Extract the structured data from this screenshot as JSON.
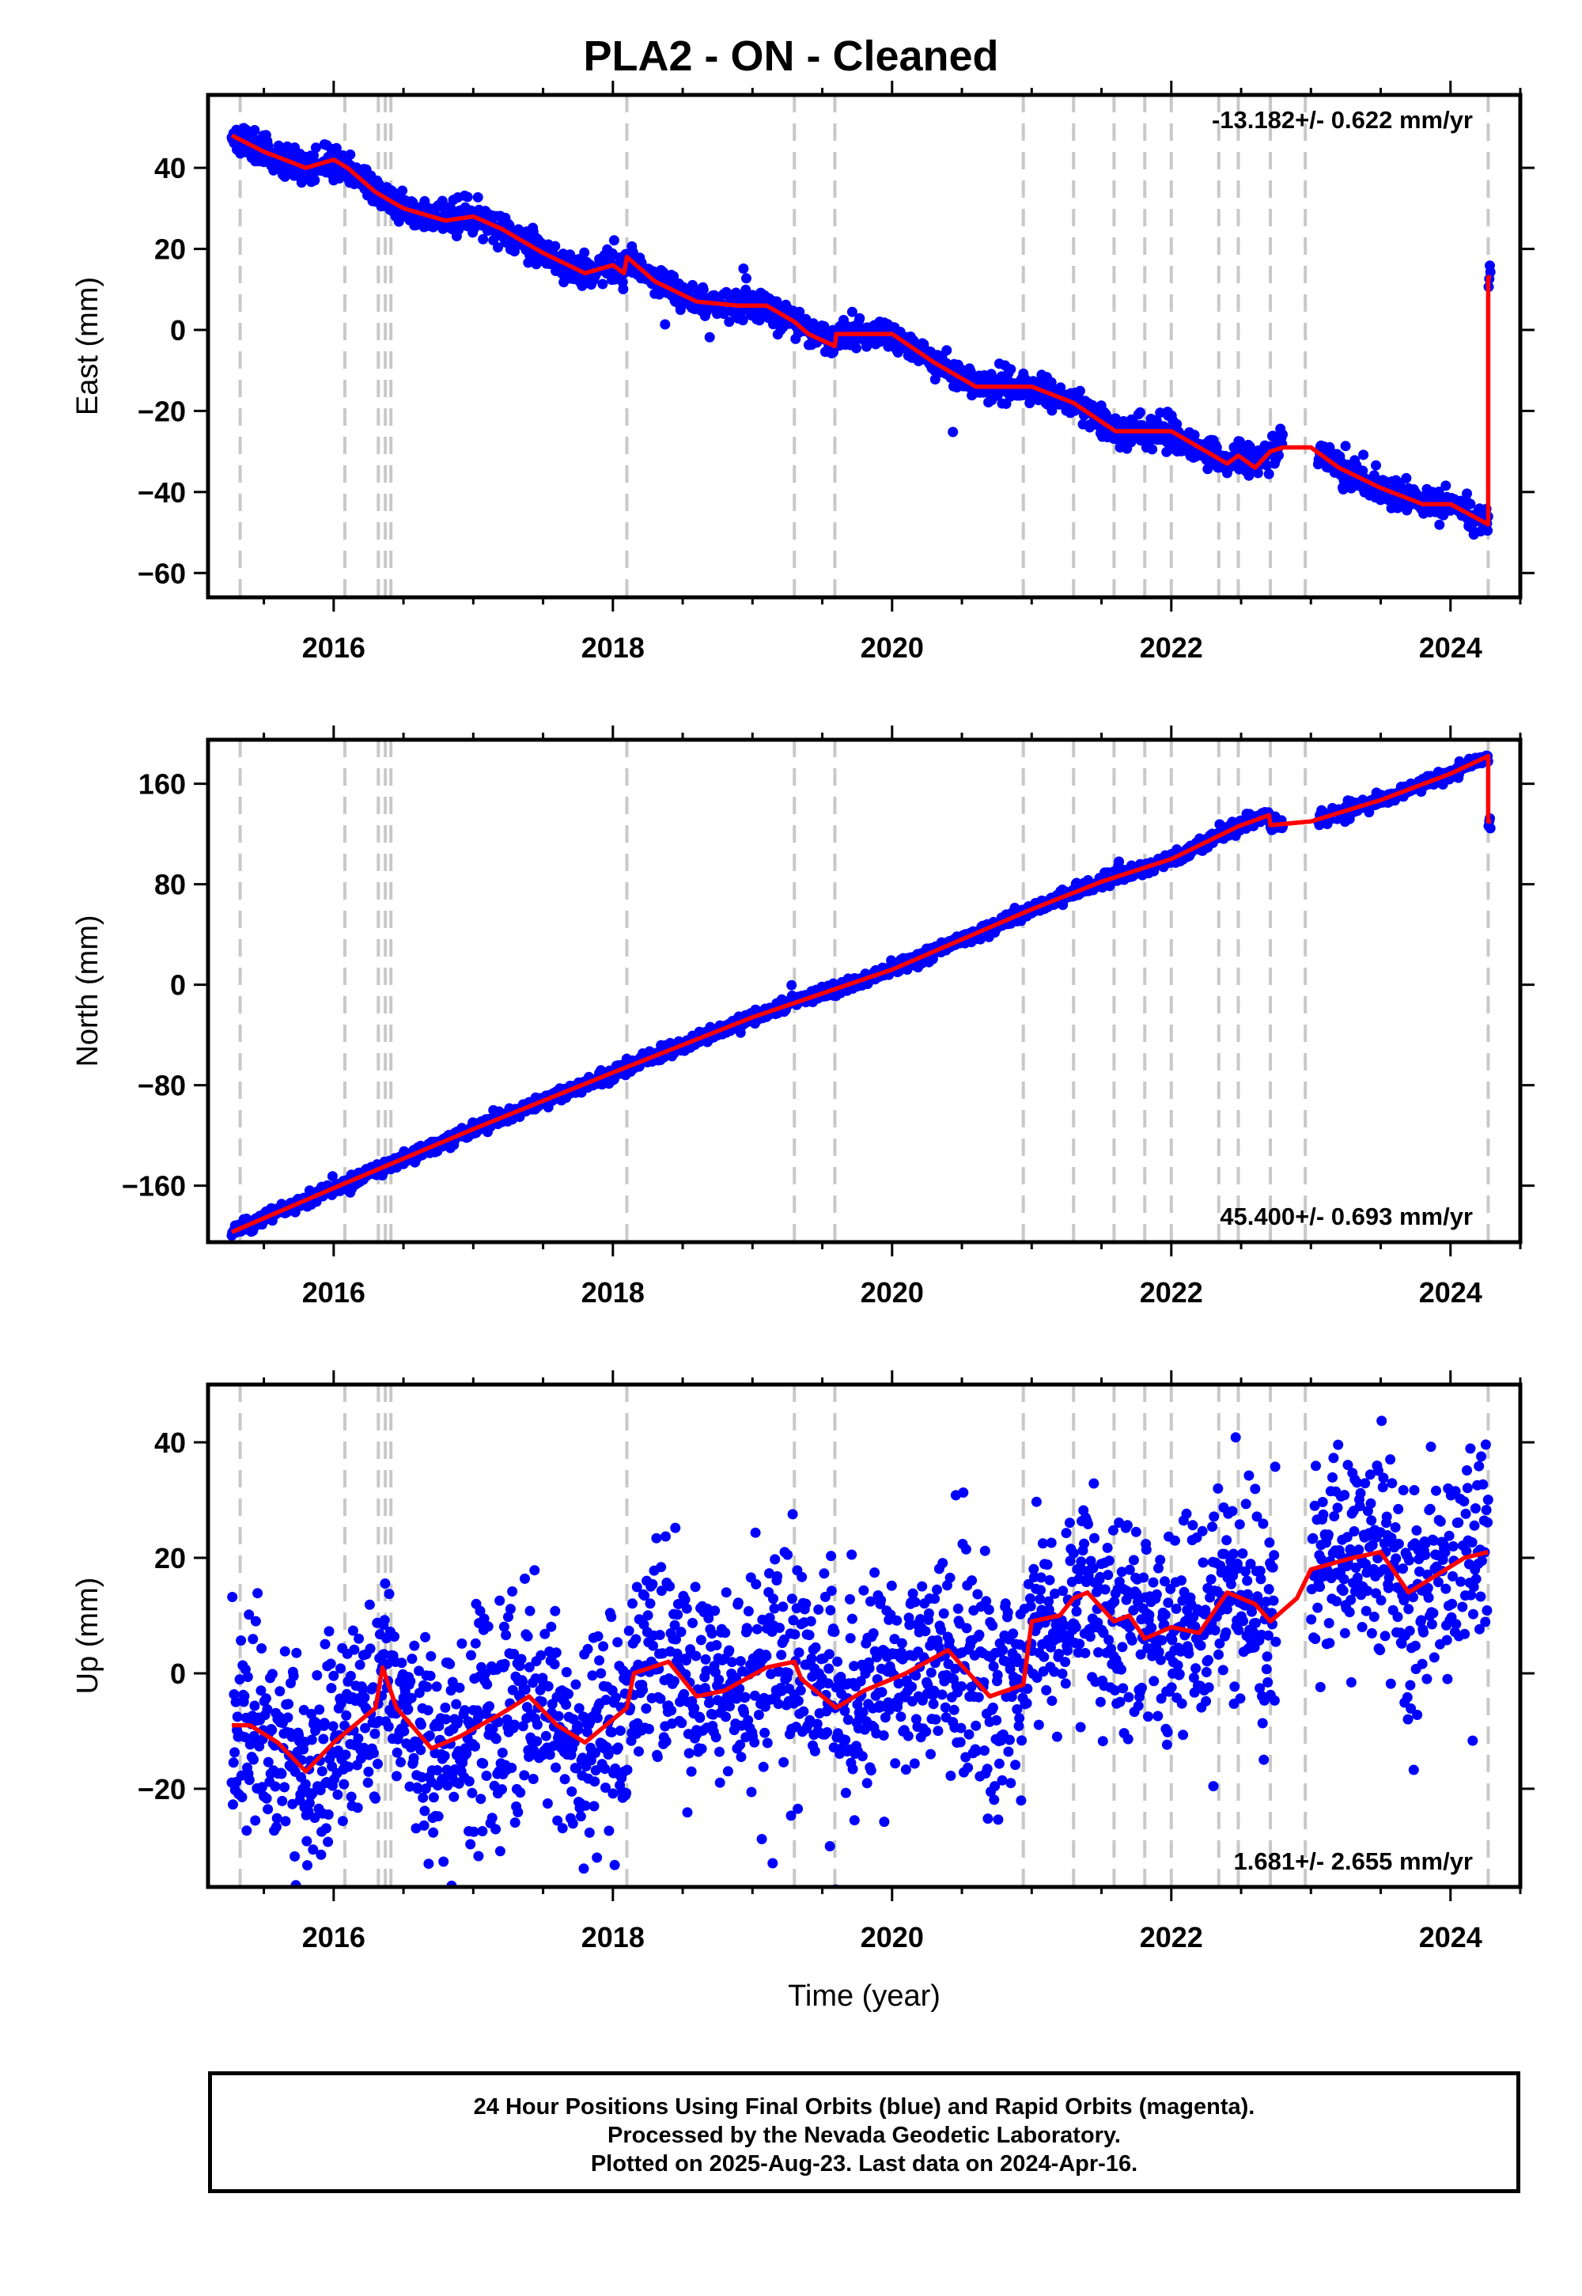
{
  "title": "PLA2  - ON - Cleaned",
  "footer": {
    "line1": "24 Hour Positions Using Final Orbits (blue) and Rapid Orbits (magenta).",
    "line2": "Processed by the Nevada Geodetic Laboratory.",
    "line3": "Plotted on 2025-Aug-23. Last data on 2024-Apr-16."
  },
  "colors": {
    "points": "#0000ff",
    "model": "#ff0000",
    "steps": "#c8c8c8"
  },
  "chart_data": [
    {
      "type": "scatter",
      "panel": "east",
      "ylabel": "East (mm)",
      "xlabel": "",
      "rate_label": "-13.182+/- 0.622 mm/yr",
      "rate_position": "top-right",
      "xlim": [
        2015.1,
        2024.5
      ],
      "ylim": [
        -66,
        58
      ],
      "xticks": [
        2016,
        2018,
        2020,
        2022,
        2024
      ],
      "yticks": [
        -60,
        -40,
        -20,
        0,
        20,
        40
      ],
      "ytick_labels": [
        "−60",
        "−40",
        "−20",
        "0",
        "20",
        "40"
      ],
      "step_epochs": [
        2015.33,
        2016.08,
        2016.32,
        2016.37,
        2016.41,
        2018.1,
        2019.3,
        2019.59,
        2020.94,
        2021.3,
        2021.59,
        2021.81,
        2022.0,
        2022.34,
        2022.48,
        2022.71,
        2022.96,
        2024.27
      ],
      "model_x": [
        2015.27,
        2015.5,
        2015.8,
        2016.0,
        2016.1,
        2016.3,
        2016.5,
        2016.8,
        2017.0,
        2017.2,
        2017.5,
        2017.8,
        2018.0,
        2018.08,
        2018.1,
        2018.3,
        2018.6,
        2018.9,
        2019.1,
        2019.3,
        2019.4,
        2019.59,
        2019.6,
        2019.8,
        2020.0,
        2020.3,
        2020.6,
        2020.9,
        2021.0,
        2021.3,
        2021.6,
        2021.8,
        2022.0,
        2022.2,
        2022.4,
        2022.48,
        2022.6,
        2022.71,
        2022.8,
        2023.0,
        2023.2,
        2023.5,
        2023.8,
        2024.0,
        2024.27,
        2024.27,
        2024.29
      ],
      "model_y": [
        48,
        44,
        40,
        42,
        40,
        34,
        30,
        27,
        28,
        25,
        19,
        14,
        16,
        14,
        18,
        12,
        7,
        6,
        6,
        2,
        -1,
        -4,
        -1,
        -1,
        -1,
        -8,
        -14,
        -14,
        -14,
        -18,
        -25,
        -25,
        -25,
        -29,
        -33,
        -31,
        -34,
        -30,
        -29,
        -29,
        -34,
        -39,
        -43,
        -43,
        -48,
        13,
        13
      ],
      "point_seed": 11,
      "point_scatter": 1.8
    },
    {
      "type": "scatter",
      "panel": "north",
      "ylabel": "North (mm)",
      "xlabel": "",
      "rate_label": "45.400+/- 0.693 mm/yr",
      "rate_position": "bottom-right",
      "xlim": [
        2015.1,
        2024.5
      ],
      "ylim": [
        -205,
        195
      ],
      "xticks": [
        2016,
        2018,
        2020,
        2022,
        2024
      ],
      "yticks": [
        -160,
        -80,
        0,
        80,
        160
      ],
      "ytick_labels": [
        "−160",
        "−80",
        "0",
        "80",
        "160"
      ],
      "step_epochs": [
        2015.33,
        2016.08,
        2016.32,
        2016.37,
        2016.41,
        2018.1,
        2019.3,
        2019.59,
        2020.94,
        2021.3,
        2021.59,
        2021.81,
        2022.0,
        2022.34,
        2022.48,
        2022.71,
        2022.96,
        2024.27
      ],
      "model_x": [
        2015.27,
        2016.0,
        2017.0,
        2018.0,
        2019.0,
        2020.0,
        2021.0,
        2021.5,
        2022.0,
        2022.48,
        2022.7,
        2022.71,
        2023.0,
        2023.5,
        2024.0,
        2024.27,
        2024.27,
        2024.29
      ],
      "model_y": [
        -197,
        -162,
        -115,
        -70,
        -26,
        12,
        60,
        82,
        100,
        126,
        135,
        127,
        130,
        147,
        168,
        182,
        130,
        130
      ],
      "point_seed": 23,
      "point_scatter": 2.5
    },
    {
      "type": "scatter",
      "panel": "up",
      "ylabel": "Up (mm)",
      "xlabel": "Time (year)",
      "rate_label": "1.681+/- 2.655 mm/yr",
      "rate_position": "bottom-right",
      "xlim": [
        2015.1,
        2024.5
      ],
      "ylim": [
        -37,
        50
      ],
      "xticks": [
        2016,
        2018,
        2020,
        2022,
        2024
      ],
      "yticks": [
        -20,
        0,
        20,
        40
      ],
      "ytick_labels": [
        "−20",
        "0",
        "20",
        "40"
      ],
      "step_epochs": [
        2015.33,
        2016.08,
        2016.32,
        2016.37,
        2016.41,
        2018.1,
        2019.3,
        2019.59,
        2020.94,
        2021.3,
        2021.59,
        2021.81,
        2022.0,
        2022.34,
        2022.48,
        2022.71,
        2022.96,
        2024.27
      ],
      "model_x": [
        2015.27,
        2015.4,
        2015.6,
        2015.8,
        2016.0,
        2016.2,
        2016.3,
        2016.35,
        2016.45,
        2016.7,
        2016.9,
        2017.2,
        2017.4,
        2017.6,
        2017.8,
        2018.0,
        2018.1,
        2018.15,
        2018.4,
        2018.6,
        2018.8,
        2019.1,
        2019.3,
        2019.35,
        2019.6,
        2019.8,
        2020.1,
        2020.4,
        2020.7,
        2020.94,
        2021.0,
        2021.2,
        2021.3,
        2021.4,
        2021.59,
        2021.7,
        2021.81,
        2022.0,
        2022.2,
        2022.4,
        2022.6,
        2022.71,
        2022.9,
        2023.0,
        2023.3,
        2023.5,
        2023.7,
        2023.9,
        2024.1,
        2024.27
      ],
      "model_y": [
        -9,
        -9,
        -12,
        -17,
        -12,
        -8,
        -6,
        1,
        -6,
        -13,
        -11,
        -7,
        -4,
        -9,
        -12,
        -8,
        -6,
        0,
        2,
        -4,
        -3,
        1,
        2,
        -1,
        -6,
        -3,
        0,
        4,
        -4,
        -2,
        9,
        10,
        13,
        14,
        9,
        10,
        6,
        8,
        7,
        14,
        12,
        9,
        13,
        18,
        20,
        21,
        14,
        17,
        20,
        21
      ],
      "point_seed": 37,
      "point_scatter": 9.0
    }
  ]
}
